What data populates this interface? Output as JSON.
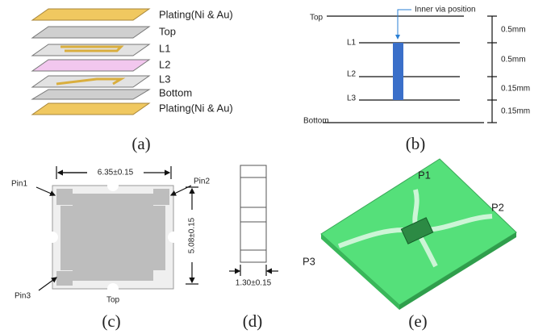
{
  "panels": {
    "a": {
      "layers": [
        "Plating(Ni & Au)",
        "Top",
        "L1",
        "L2",
        "L3",
        "Bottom",
        "Plating(Ni & Au)"
      ],
      "caption": "(a)"
    },
    "b": {
      "levels": [
        "Top",
        "L1",
        "L2",
        "L3",
        "Bottom"
      ],
      "annotation": "Inner via position",
      "thicknesses": [
        "0.5mm",
        "0.5mm",
        "0.15mm",
        "0.15mm"
      ],
      "caption": "(b)"
    },
    "c": {
      "width": "6.35±0.15",
      "height": "5.08±0.15",
      "pins": [
        "Pin1",
        "Pin2",
        "Pin3"
      ],
      "view": "Top",
      "caption": "(c)"
    },
    "d": {
      "thickness": "1.30±0.15",
      "caption": "(d)"
    },
    "e": {
      "ports": [
        "P1",
        "P2",
        "P3"
      ],
      "caption": "(e)"
    }
  }
}
